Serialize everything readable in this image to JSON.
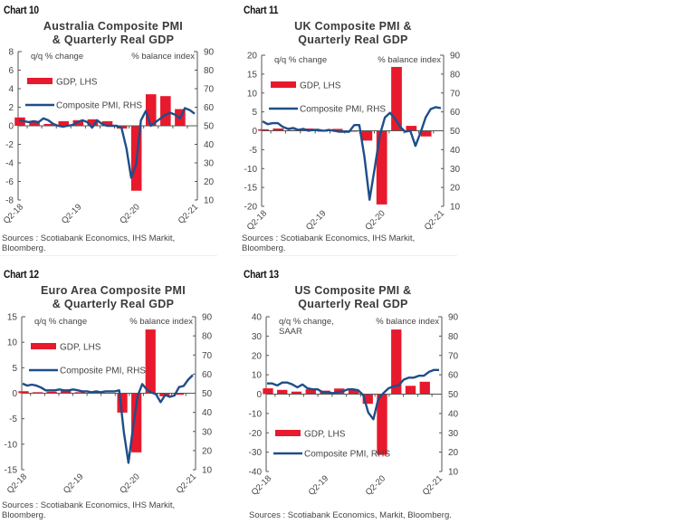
{
  "colors": {
    "gdp": "#e8192c",
    "pmi": "#1f4e89",
    "axis": "#555555",
    "text": "#444444"
  },
  "chart_data": [
    {
      "id": "chart10",
      "type": "bar",
      "label": "Chart 10",
      "title_lines": [
        "Australia Composite PMI",
        "& Quarterly Real GDP"
      ],
      "left_label_lines": [
        "q/q % change"
      ],
      "right_label": "% balance index",
      "legend": {
        "gdp": "GDP, LHS",
        "pmi": "Composite PMI, RHS",
        "position": "top-left"
      },
      "ylim_left": [
        -8,
        8
      ],
      "yticks_left": [
        -8,
        -6,
        -4,
        -2,
        0,
        2,
        4,
        6,
        8
      ],
      "ylim_right": [
        10,
        90
      ],
      "yticks_right": [
        10,
        20,
        30,
        40,
        50,
        60,
        70,
        80,
        90
      ],
      "x_tick_labels": [
        "Q2-18",
        "Q2-19",
        "Q2-20",
        "Q2-21"
      ],
      "quarters": [
        "Q2-18",
        "Q3-18",
        "Q4-18",
        "Q1-19",
        "Q2-19",
        "Q3-19",
        "Q4-19",
        "Q1-20",
        "Q2-20",
        "Q3-20",
        "Q4-20",
        "Q1-21",
        "Q2-21"
      ],
      "gdp": [
        0.9,
        0.5,
        0.2,
        0.5,
        0.6,
        0.7,
        0.5,
        -0.3,
        -7.0,
        3.4,
        3.2,
        1.8,
        null
      ],
      "pmi": [
        53,
        52.5,
        52,
        52.5,
        52,
        54,
        53,
        51,
        50,
        49.5,
        50,
        50.5,
        52,
        53,
        52,
        49,
        53,
        51,
        50,
        50,
        50,
        49,
        38,
        22,
        29,
        53,
        58,
        50,
        52,
        54,
        56,
        57,
        56,
        54,
        59.5,
        58.5,
        56.5
      ],
      "sources_lines": [
        "Sources : Scotiabank Economics, IHS Markit,",
        "Bloomberg."
      ]
    },
    {
      "id": "chart11",
      "type": "bar",
      "label": "Chart 11",
      "title_lines": [
        "UK Composite PMI &",
        "Quarterly Real GDP"
      ],
      "left_label_lines": [
        "q/q % change"
      ],
      "right_label": "% balance index",
      "legend": {
        "gdp": "GDP, LHS",
        "pmi": "Composite PMI, RHS",
        "position": "top-left"
      },
      "ylim_left": [
        -20,
        20
      ],
      "yticks_left": [
        -20,
        -15,
        -10,
        -5,
        0,
        5,
        10,
        15,
        20
      ],
      "ylim_right": [
        10,
        90
      ],
      "yticks_right": [
        10,
        20,
        30,
        40,
        50,
        60,
        70,
        80,
        90
      ],
      "x_tick_labels": [
        "Q2-18",
        "Q2-19",
        "Q2-20",
        "Q2-21"
      ],
      "quarters": [
        "Q2-18",
        "Q3-18",
        "Q4-18",
        "Q1-19",
        "Q2-19",
        "Q3-19",
        "Q4-19",
        "Q1-20",
        "Q2-20",
        "Q3-20",
        "Q4-20",
        "Q1-21",
        "Q2-21"
      ],
      "gdp": [
        0.4,
        0.6,
        0.2,
        0.6,
        -0.1,
        0.5,
        0.0,
        -2.6,
        -19.5,
        16.9,
        1.3,
        -1.5,
        null
      ],
      "pmi": [
        55,
        53.5,
        54,
        54,
        52,
        51,
        51.5,
        50.5,
        51,
        50,
        50.5,
        50.5,
        50,
        50.5,
        50,
        49.5,
        49.5,
        49.5,
        53,
        53,
        36,
        13.5,
        30,
        47.5,
        57,
        59.5,
        56.5,
        52,
        49.5,
        50,
        42,
        49,
        57,
        61.5,
        62.5,
        62
      ],
      "sources_lines": [
        "Sources : Scotiabank Economics, IHS Markit,",
        "Bloomberg."
      ]
    },
    {
      "id": "chart12",
      "type": "bar",
      "label": "Chart 12",
      "title_lines": [
        "Euro Area Composite PMI",
        "& Quarterly Real GDP"
      ],
      "left_label_lines": [
        "q/q % change"
      ],
      "right_label": "% balance index",
      "legend": {
        "gdp": "GDP, LHS",
        "pmi": "Composite PMI, RHS",
        "position": "top-left"
      },
      "ylim_left": [
        -15,
        15
      ],
      "yticks_left": [
        -15,
        -10,
        -5,
        0,
        5,
        10,
        15
      ],
      "ylim_right": [
        10,
        90
      ],
      "yticks_right": [
        10,
        20,
        30,
        40,
        50,
        60,
        70,
        80,
        90
      ],
      "x_tick_labels": [
        "Q2-18",
        "Q2-19",
        "Q2-20",
        "Q2-21"
      ],
      "quarters": [
        "Q2-18",
        "Q3-18",
        "Q4-18",
        "Q1-19",
        "Q2-19",
        "Q3-19",
        "Q4-19",
        "Q1-20",
        "Q2-20",
        "Q3-20",
        "Q4-20",
        "Q1-21",
        "Q2-21"
      ],
      "gdp": [
        0.4,
        0.2,
        0.3,
        0.5,
        0.2,
        0.3,
        0.1,
        -3.8,
        -11.6,
        12.5,
        -0.6,
        -0.3,
        null
      ],
      "pmi": [
        55,
        54,
        54.5,
        54,
        53,
        51.5,
        51.5,
        51.5,
        52,
        51.5,
        51.5,
        52,
        51.5,
        51,
        51,
        50.5,
        51,
        50.5,
        51,
        51,
        51,
        51.5,
        29.7,
        13.6,
        31.9,
        48.5,
        54.8,
        51.9,
        50.4,
        49.4,
        45.3,
        49.1,
        48.1,
        48.8,
        53.2,
        53.8,
        57.1,
        59.5
      ],
      "sources_lines": [
        "Sources : Scotiabank Economics, IHS Markit,",
        "Bloomberg."
      ]
    },
    {
      "id": "chart13",
      "type": "bar",
      "label": "Chart 13",
      "title_lines": [
        "US Composite PMI &",
        "Quarterly Real GDP"
      ],
      "left_label_lines": [
        "q/q % change,",
        "SAAR"
      ],
      "right_label": "% balance index",
      "legend": {
        "gdp": "GDP, LHS",
        "pmi": "Composite PMI, RHS",
        "position": "bottom-left"
      },
      "ylim_left": [
        -40,
        40
      ],
      "yticks_left": [
        -40,
        -30,
        -20,
        -10,
        0,
        10,
        20,
        30,
        40
      ],
      "ylim_right": [
        10,
        90
      ],
      "yticks_right": [
        10,
        20,
        30,
        40,
        50,
        60,
        70,
        80,
        90
      ],
      "x_tick_labels": [
        "Q2-18",
        "Q2-19",
        "Q2-20",
        "Q2-21"
      ],
      "quarters": [
        "Q2-18",
        "Q3-18",
        "Q4-18",
        "Q1-19",
        "Q2-19",
        "Q3-19",
        "Q4-19",
        "Q1-20",
        "Q2-20",
        "Q3-20",
        "Q4-20",
        "Q1-21",
        "Q2-21"
      ],
      "gdp": [
        3.0,
        2.2,
        1.3,
        2.5,
        1.8,
        2.9,
        2.4,
        -5.0,
        -31.4,
        33.4,
        4.3,
        6.4,
        null
      ],
      "pmi": [
        55.5,
        55.5,
        54.5,
        56,
        56,
        55,
        53.5,
        55,
        53,
        52.5,
        52.5,
        51,
        51,
        50.5,
        51,
        51.5,
        52.5,
        52.5,
        52,
        49.5,
        40.5,
        37,
        47.5,
        50.5,
        53,
        54,
        54.5,
        57.5,
        58.5,
        58.5,
        59.5,
        59.5,
        61.5,
        62.5,
        62.5
      ],
      "sources_lines": [
        "Sources : Scotiabank Economics, Markit, Bloomberg."
      ]
    }
  ]
}
